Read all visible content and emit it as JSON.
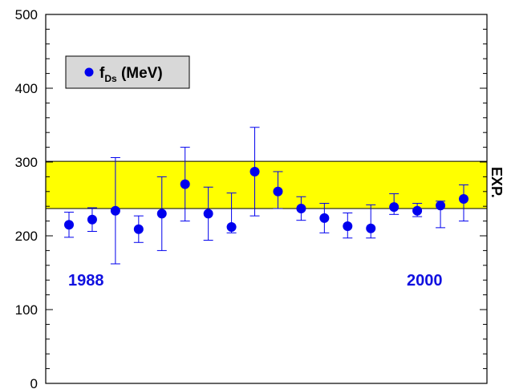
{
  "chart_data": {
    "type": "scatter",
    "ylim": [
      0,
      500
    ],
    "y_ticks": [
      "0",
      "100",
      "200",
      "300",
      "400",
      "500"
    ],
    "band": {
      "low": 237,
      "high": 301,
      "label": "EXP.",
      "color": "#ffff00"
    },
    "legend": {
      "prefix": "f",
      "subscript": "Ds",
      "suffix": " (MeV)",
      "placement": "top-left"
    },
    "annotations": {
      "start": "1988",
      "end": "2000"
    },
    "marker_color": "#0000ee",
    "series": [
      {
        "points": [
          {
            "y": 215,
            "lo": 198,
            "hi": 232
          },
          {
            "y": 222,
            "lo": 206,
            "hi": 238
          },
          {
            "y": 234,
            "lo": 162,
            "hi": 306
          },
          {
            "y": 209,
            "lo": 191,
            "hi": 227
          },
          {
            "y": 230,
            "lo": 180,
            "hi": 280
          },
          {
            "y": 270,
            "lo": 220,
            "hi": 320
          },
          {
            "y": 230,
            "lo": 194,
            "hi": 266
          },
          {
            "y": 212,
            "lo": 204,
            "hi": 258
          },
          {
            "y": 287,
            "lo": 227,
            "hi": 347
          },
          {
            "y": 260,
            "lo": 237,
            "hi": 287
          },
          {
            "y": 237,
            "lo": 221,
            "hi": 253
          },
          {
            "y": 224,
            "lo": 204,
            "hi": 244
          },
          {
            "y": 213,
            "lo": 197,
            "hi": 231
          },
          {
            "y": 210,
            "lo": 197,
            "hi": 242
          },
          {
            "y": 239,
            "lo": 229,
            "hi": 257
          },
          {
            "y": 234,
            "lo": 226,
            "hi": 244
          },
          {
            "y": 241,
            "lo": 211,
            "hi": 247
          },
          {
            "y": 250,
            "lo": 220,
            "hi": 269
          }
        ]
      }
    ]
  }
}
